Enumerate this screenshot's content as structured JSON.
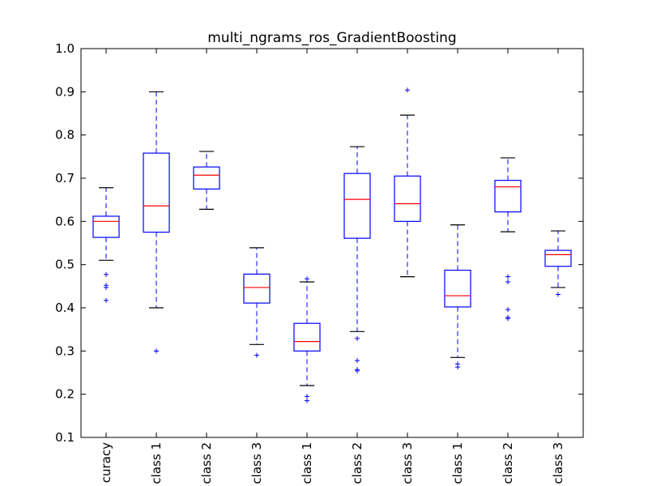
{
  "chart_data": {
    "type": "box",
    "title": "multi_ngrams_ros_GradientBoosting",
    "xlabel": "",
    "ylabel": "",
    "ylim": [
      0.1,
      1.0
    ],
    "yticks": [
      "0.1",
      "0.2",
      "0.3",
      "0.4",
      "0.5",
      "0.6",
      "0.7",
      "0.8",
      "0.9",
      "1.0"
    ],
    "categories": [
      "curacy",
      "class 1",
      "class 2",
      "class 3",
      "class 1",
      "class 2",
      "class 3",
      "class 1",
      "class 2",
      "class 3"
    ],
    "grid": false,
    "boxes": [
      {
        "whisker_low": 0.51,
        "q1": 0.563,
        "median": 0.6,
        "q3": 0.612,
        "whisker_high": 0.678,
        "outliers": [
          0.477,
          0.452,
          0.447,
          0.417
        ]
      },
      {
        "whisker_low": 0.4,
        "q1": 0.575,
        "median": 0.636,
        "q3": 0.758,
        "whisker_high": 0.9,
        "outliers": [
          0.3,
          0.3
        ]
      },
      {
        "whisker_low": 0.628,
        "q1": 0.675,
        "median": 0.707,
        "q3": 0.726,
        "whisker_high": 0.762,
        "outliers": []
      },
      {
        "whisker_low": 0.315,
        "q1": 0.411,
        "median": 0.447,
        "q3": 0.478,
        "whisker_high": 0.539,
        "outliers": [
          0.29
        ]
      },
      {
        "whisker_low": 0.22,
        "q1": 0.3,
        "median": 0.322,
        "q3": 0.364,
        "whisker_high": 0.46,
        "outliers": [
          0.467,
          0.195,
          0.185
        ]
      },
      {
        "whisker_low": 0.345,
        "q1": 0.561,
        "median": 0.651,
        "q3": 0.711,
        "whisker_high": 0.773,
        "outliers": [
          0.329,
          0.278,
          0.257,
          0.254
        ]
      },
      {
        "whisker_low": 0.472,
        "q1": 0.6,
        "median": 0.641,
        "q3": 0.705,
        "whisker_high": 0.846,
        "outliers": [
          0.904
        ]
      },
      {
        "whisker_low": 0.285,
        "q1": 0.402,
        "median": 0.428,
        "q3": 0.487,
        "whisker_high": 0.592,
        "outliers": [
          0.27,
          0.263
        ]
      },
      {
        "whisker_low": 0.576,
        "q1": 0.622,
        "median": 0.68,
        "q3": 0.695,
        "whisker_high": 0.747,
        "outliers": [
          0.472,
          0.46,
          0.396,
          0.378,
          0.375
        ]
      },
      {
        "whisker_low": 0.447,
        "q1": 0.496,
        "median": 0.523,
        "q3": 0.533,
        "whisker_high": 0.578,
        "outliers": [
          0.431
        ]
      }
    ],
    "colors": {
      "box": "#0000ff",
      "median": "#ff0000",
      "caps": "#000000",
      "flier": "#0000ff",
      "axes": "#000000"
    }
  }
}
